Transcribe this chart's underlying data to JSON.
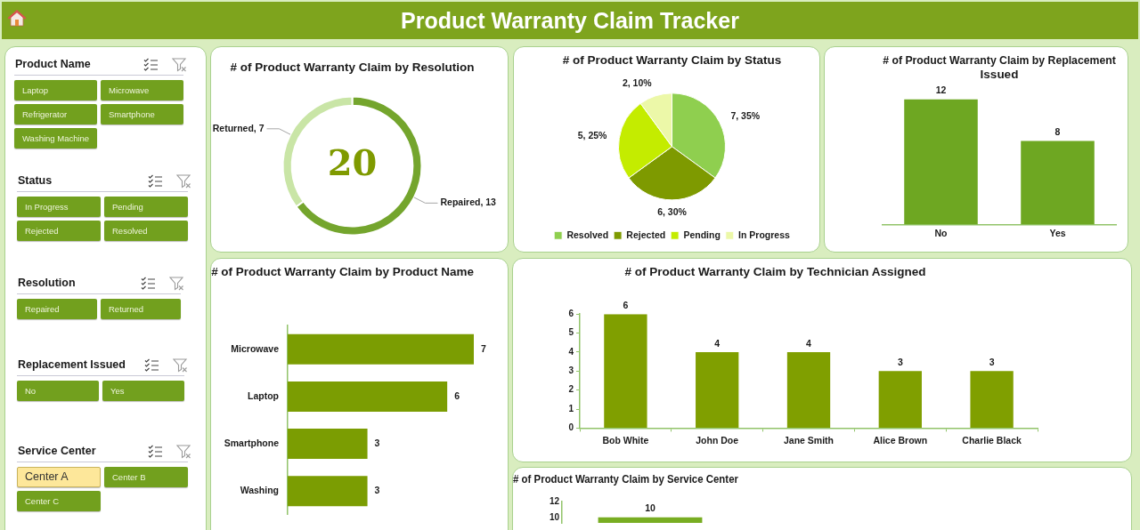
{
  "chart_data": [
    {
      "type": "other",
      "title": "Product Warranty Claim Tracker"
    },
    {
      "type": "other",
      "title": "Product Name",
      "categories": [
        "Laptop",
        "Microwave",
        "Refrigerator",
        "Smartphone",
        "Washing Machine"
      ]
    },
    {
      "type": "other",
      "title": "Status",
      "categories": [
        "In Progress",
        "Pending",
        "Rejected",
        "Resolved"
      ]
    },
    {
      "type": "other",
      "title": "Resolution",
      "categories": [
        "Repaired",
        "Returned"
      ]
    },
    {
      "type": "other",
      "title": "Replacement Issued",
      "categories": [
        "No",
        "Yes"
      ]
    },
    {
      "type": "other",
      "title": "Service Center",
      "categories": [
        "Center A",
        "Center B",
        "Center C"
      ]
    },
    {
      "type": "donut",
      "title": "# of Product Warranty Claim by Resolution",
      "categories": [
        "Repaired",
        "Returned"
      ],
      "values": [
        13,
        7
      ],
      "colors": [
        "#74a52d",
        "#c9e5a6"
      ],
      "value_labels": [
        ", 13",
        ", 7"
      ],
      "annotations": [
        "20"
      ]
    },
    {
      "type": "pie",
      "title": "# of Product Warranty Claim by Status",
      "categories": [
        "Resolved",
        "Rejected",
        "Pending",
        "In Progress"
      ],
      "values": [
        7,
        6,
        5,
        2
      ],
      "colors": [
        "#8fcf4f",
        "#7e9a00",
        "#c4ec00",
        "#ecf8a8"
      ],
      "value_labels": [
        "7, 35%",
        "6, 30%",
        "5, 25%",
        "2, 10%"
      ],
      "legend": "bottom"
    },
    {
      "type": "bar",
      "title": "# of Product Warranty Claim by Replacement Issued",
      "categories": [
        "No",
        "Yes"
      ],
      "values": [
        12,
        8
      ],
      "color": "#6ea722",
      "data_labels": true,
      "tick_labels": "x"
    },
    {
      "type": "bar",
      "orientation": "horizontal",
      "title": "# of Product Warranty Claim by Product Name",
      "categories": [
        "Microwave",
        "Laptop",
        "Smartphone",
        "Washing"
      ],
      "values": [
        7,
        6,
        3,
        3
      ],
      "color": "#7b9d02",
      "data_labels": true,
      "tick_labels": "y"
    },
    {
      "type": "bar",
      "title": "# of Product Warranty Claim by Technician Assigned",
      "categories": [
        "Bob White",
        "John Doe",
        "Jane Smith",
        "Alice Brown",
        "Charlie Black"
      ],
      "values": [
        6,
        4,
        4,
        3,
        3
      ],
      "color": "#809f00",
      "data_labels": true,
      "ylim": [
        0,
        6
      ],
      "yticks": [
        0,
        1,
        2,
        3,
        4,
        5,
        6
      ]
    },
    {
      "type": "bar",
      "title": "# of Product Warranty Claim by Service Center",
      "categories": [
        null
      ],
      "values": [
        10
      ],
      "color": "#78ad22",
      "data_labels": true,
      "ylim": [
        9.3,
        12
      ],
      "yticks": [
        10,
        12
      ],
      "tick_labels": "y"
    }
  ]
}
